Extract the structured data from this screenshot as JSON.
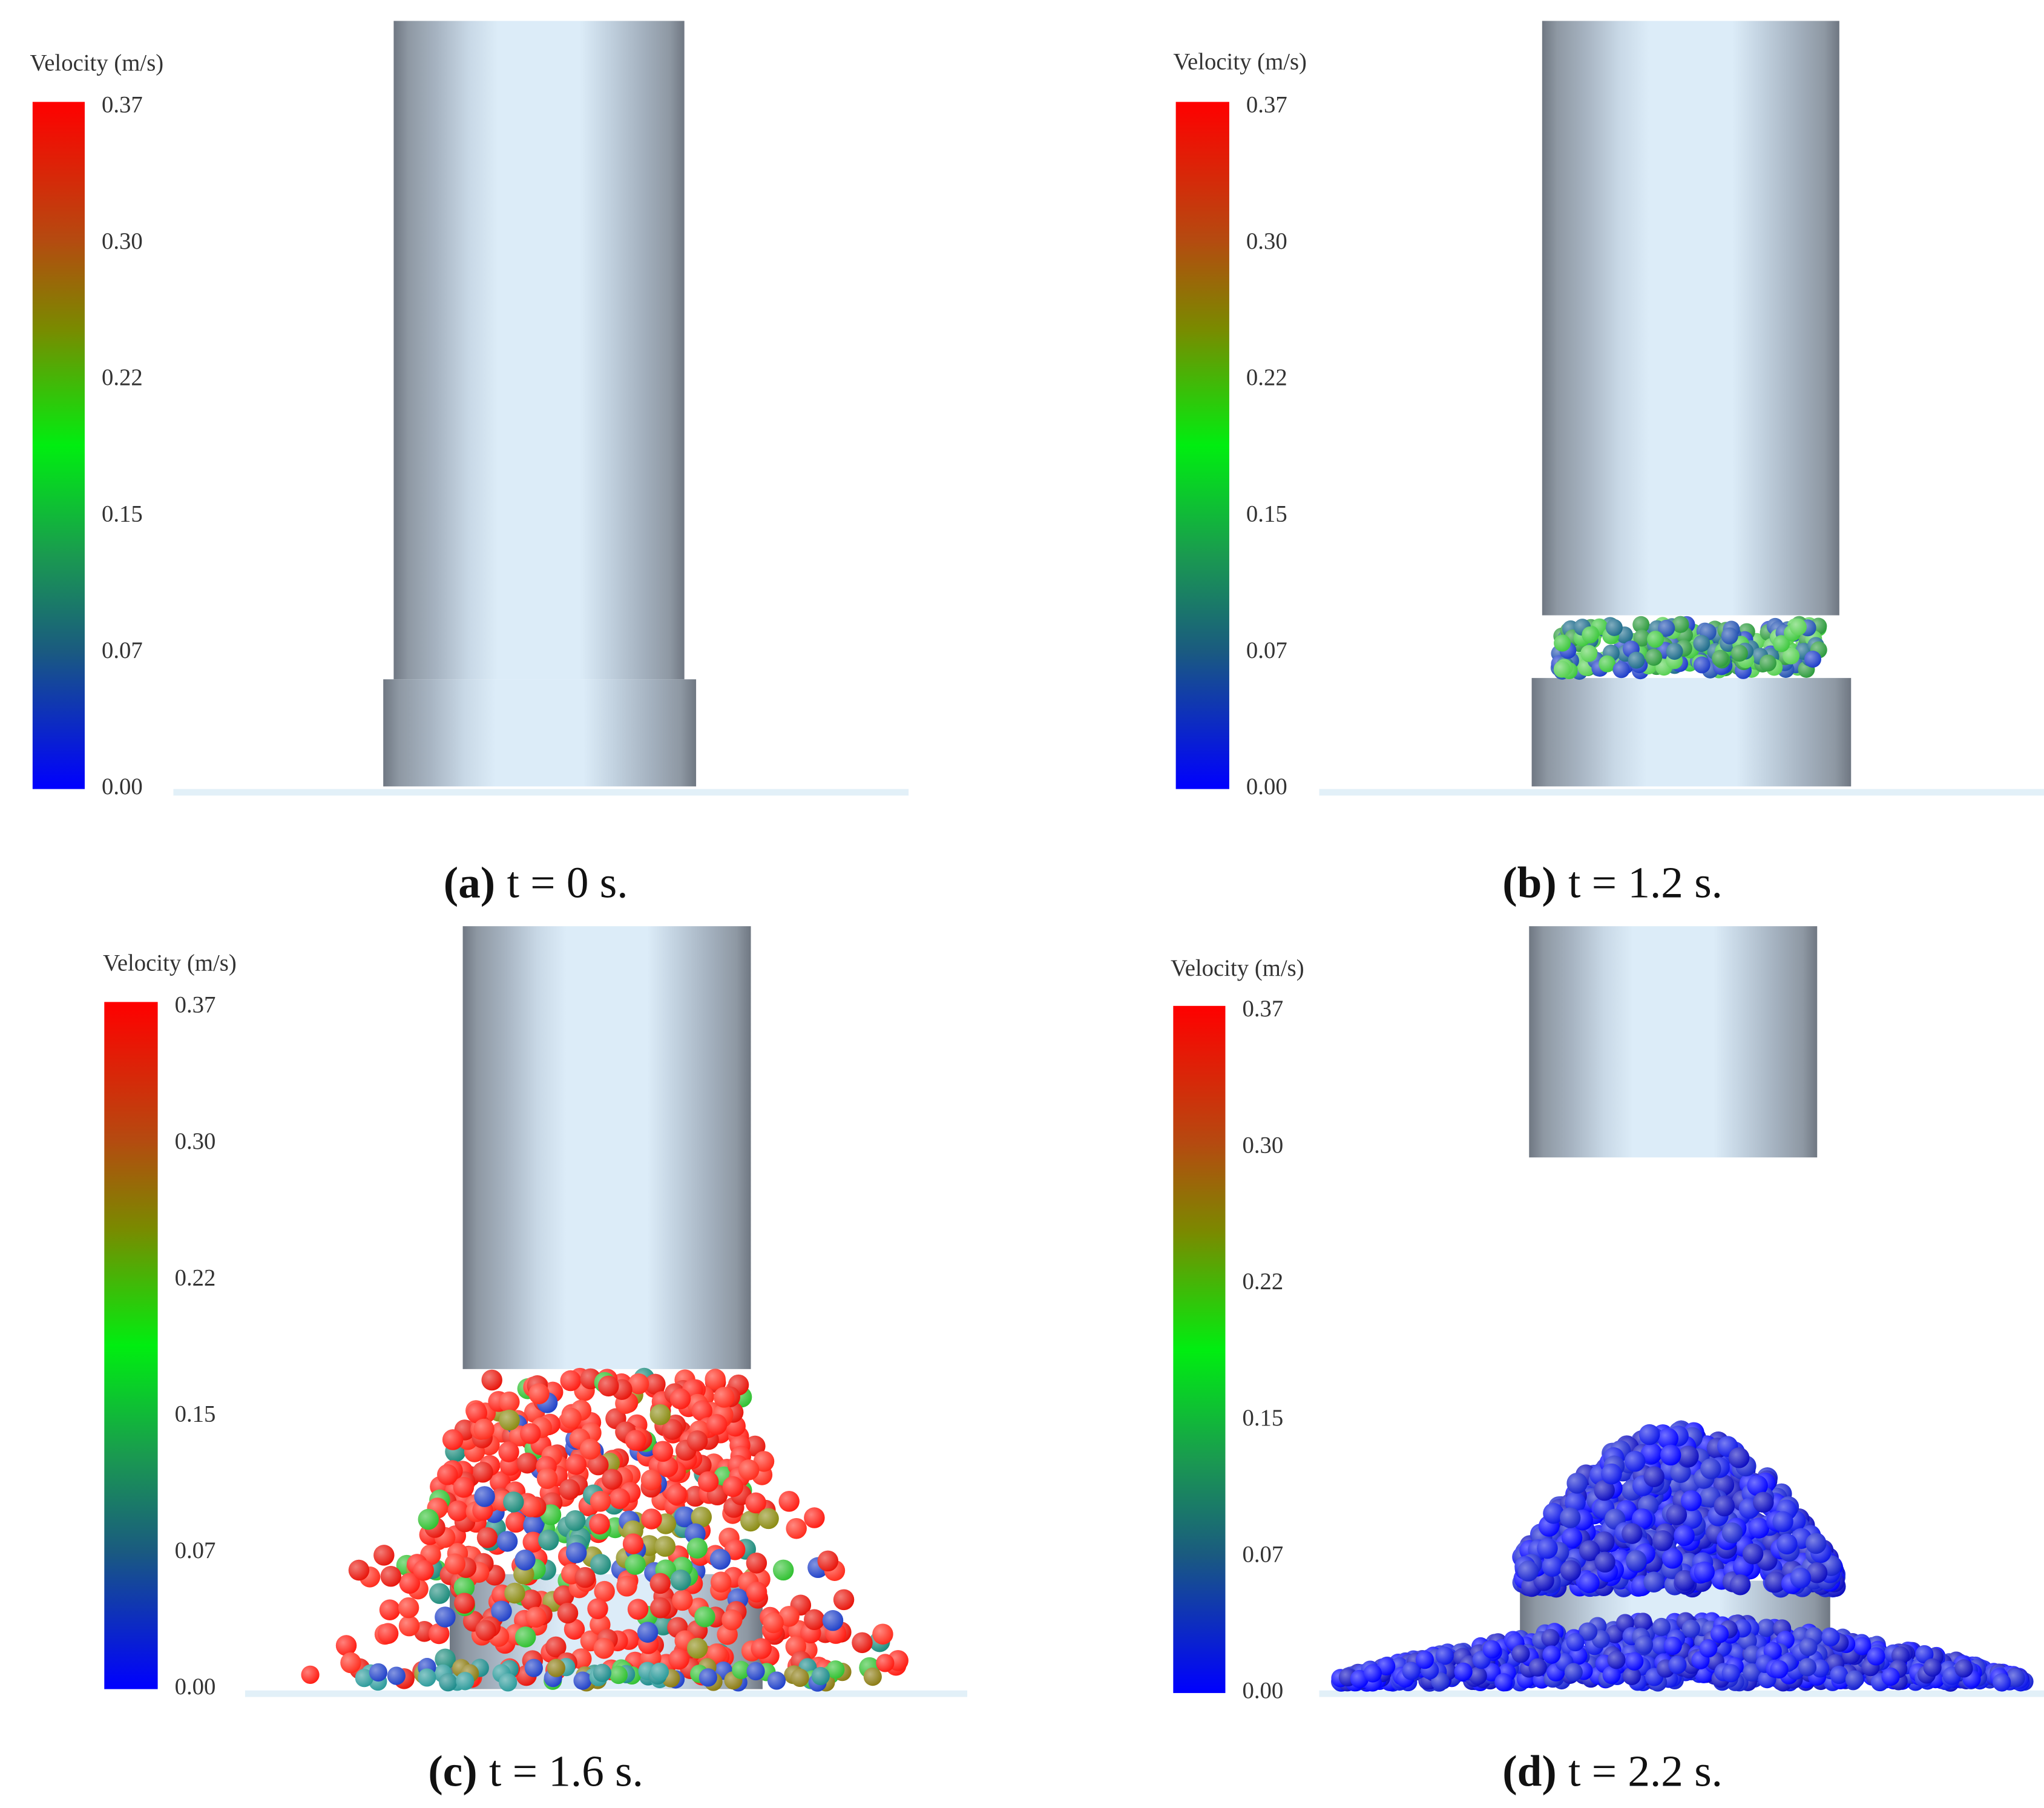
{
  "panels": [
    {
      "legend": {
        "title": "Velocity (m/s)",
        "ticks": [
          "0.37",
          "0.30",
          "0.22",
          "0.15",
          "0.07",
          "0.00"
        ]
      },
      "caption": {
        "label": "(a)",
        "text": "t = 0 s."
      }
    },
    {
      "legend": {
        "title": "Velocity (m/s)",
        "ticks": [
          "0.37",
          "0.30",
          "0.22",
          "0.15",
          "0.07",
          "0.00"
        ]
      },
      "caption": {
        "label": "(b)",
        "text": "t = 1.2 s."
      }
    },
    {
      "legend": {
        "title": "Velocity (m/s)",
        "ticks": [
          "0.37",
          "0.30",
          "0.22",
          "0.15",
          "0.07",
          "0.00"
        ]
      },
      "caption": {
        "label": "(c)",
        "text": "t = 1.6 s."
      }
    },
    {
      "legend": {
        "title": "Velocity (m/s)",
        "ticks": [
          "0.37",
          "0.30",
          "0.22",
          "0.15",
          "0.07",
          "0.00"
        ]
      },
      "caption": {
        "label": "(d)",
        "text": "t = 2.2 s."
      }
    }
  ]
}
